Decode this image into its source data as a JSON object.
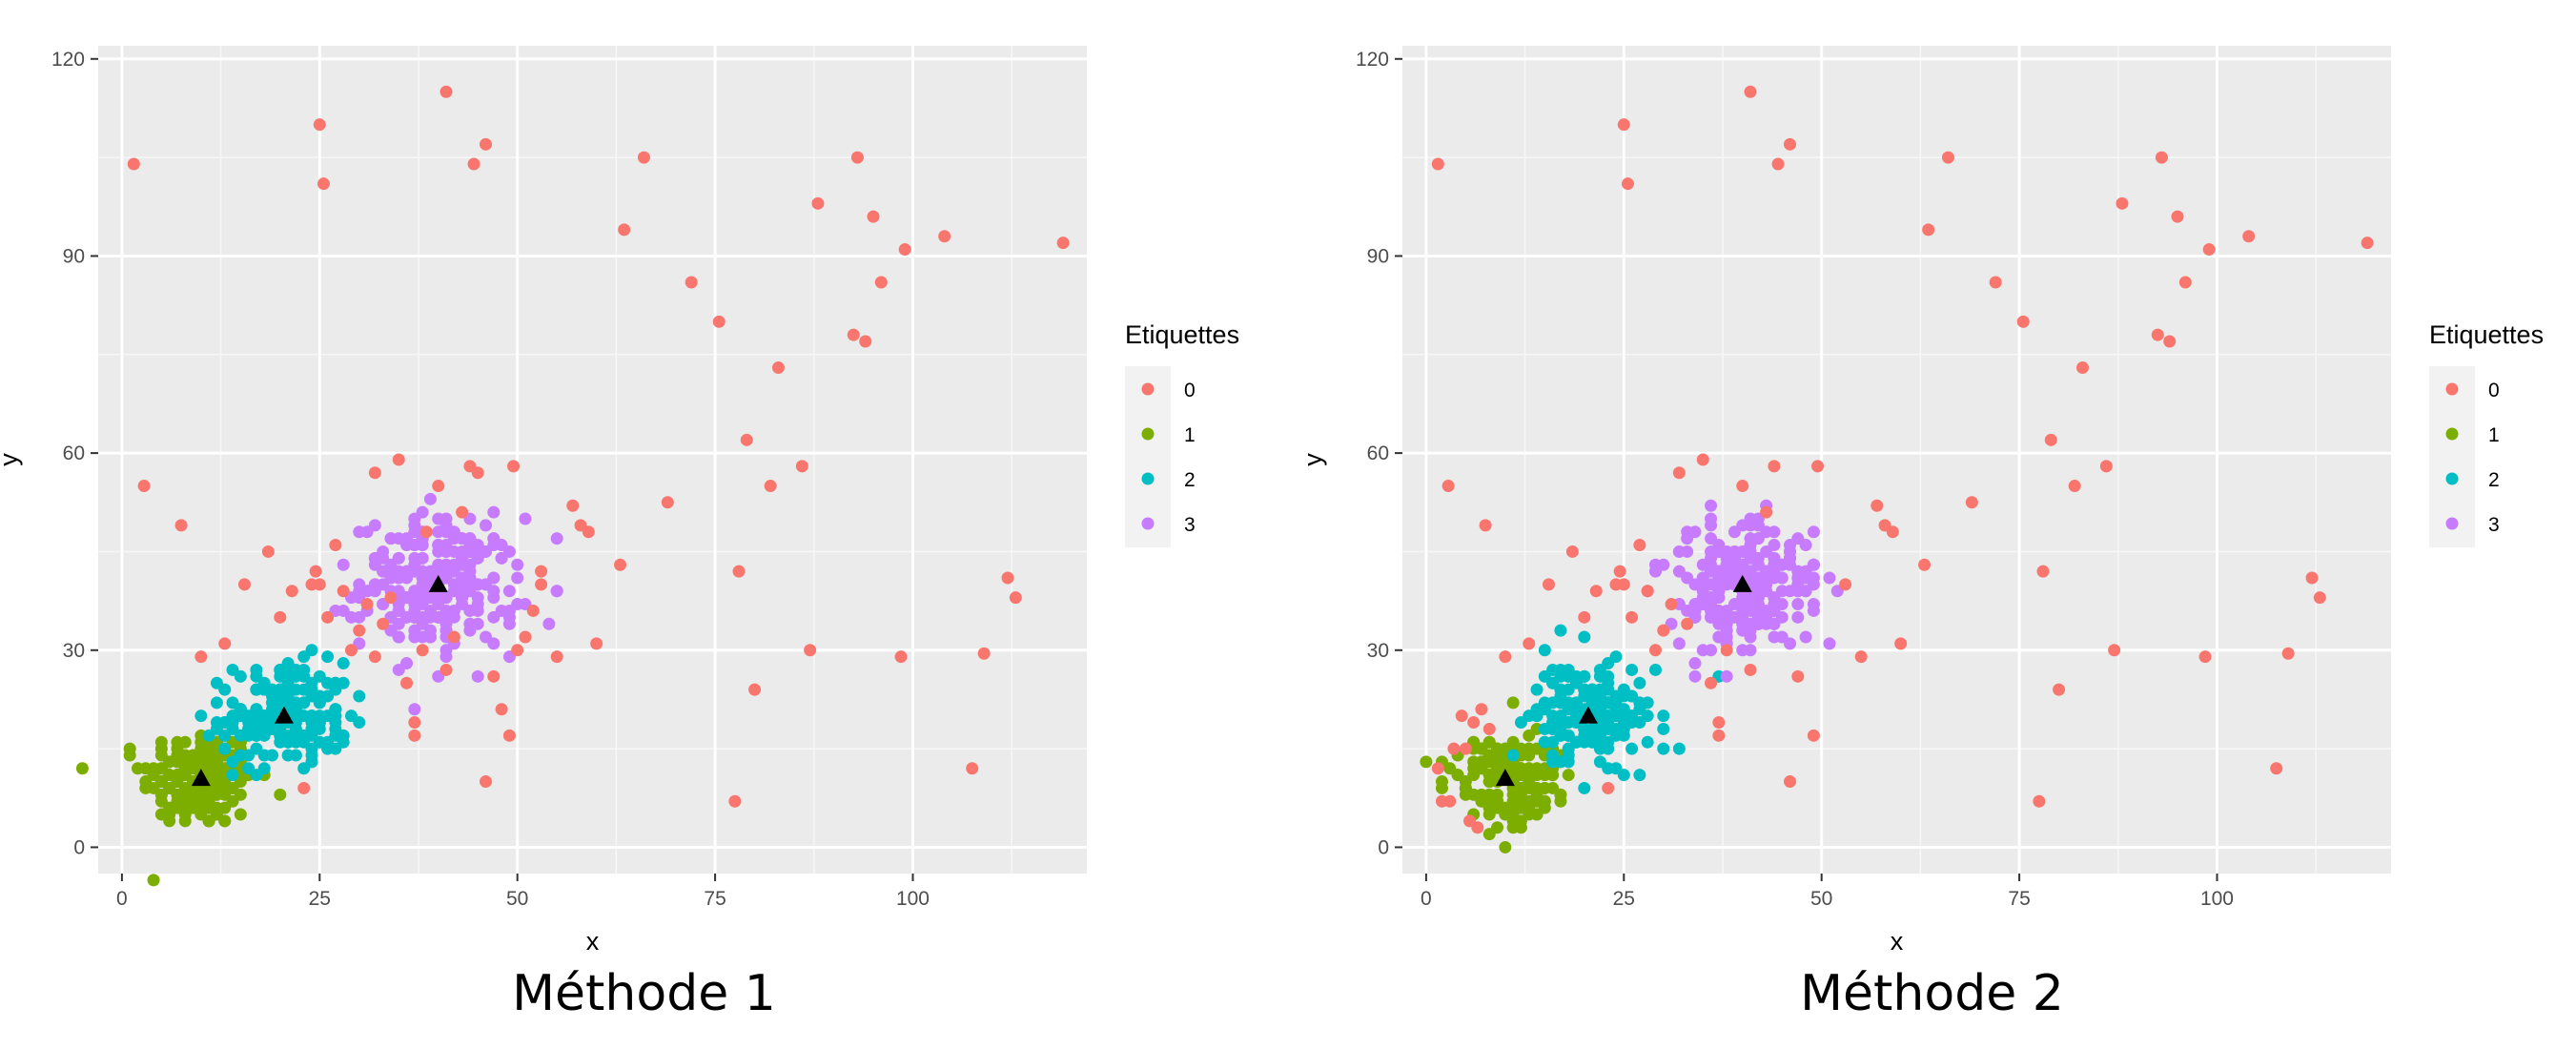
{
  "legend_title": "Etiquettes",
  "label_colors": {
    "0": "#F8766D",
    "1": "#7CAE00",
    "2": "#00BFC4",
    "3": "#C77CFF"
  },
  "chart_data": [
    {
      "type": "scatter",
      "caption": "Méthode 1",
      "xlabel": "x",
      "ylabel": "y",
      "xlim": [
        -3,
        122
      ],
      "ylim": [
        -4,
        122
      ],
      "xticks": [
        0,
        25,
        50,
        75,
        100
      ],
      "yticks": [
        0,
        30,
        60,
        90,
        120
      ],
      "grid": true,
      "legend": {
        "title": "Etiquettes",
        "position": "right",
        "entries": [
          "0",
          "1",
          "2",
          "3"
        ]
      },
      "centroids": [
        [
          10,
          10.5
        ],
        [
          20.5,
          20
        ],
        [
          40,
          40
        ]
      ],
      "clusters": [
        {
          "label": "1",
          "center": [
            10,
            10.5
          ],
          "spread": [
            3.6,
            3.8
          ],
          "n": 190
        },
        {
          "label": "2",
          "center": [
            20.5,
            20
          ],
          "spread": [
            4,
            4
          ],
          "n": 190
        },
        {
          "label": "3",
          "center": [
            40,
            40
          ],
          "spread": [
            5,
            5
          ],
          "n": 270
        }
      ],
      "label0_points": [
        [
          1.5,
          104
        ],
        [
          2.8,
          55
        ],
        [
          7.5,
          49
        ],
        [
          10,
          29
        ],
        [
          13,
          31
        ],
        [
          15.5,
          40
        ],
        [
          18.5,
          45
        ],
        [
          20,
          35
        ],
        [
          21.5,
          39
        ],
        [
          24,
          40
        ],
        [
          25,
          40
        ],
        [
          24.5,
          42
        ],
        [
          26,
          35
        ],
        [
          27,
          46
        ],
        [
          28,
          39
        ],
        [
          29,
          30
        ],
        [
          30,
          33
        ],
        [
          31,
          37
        ],
        [
          32,
          57
        ],
        [
          32,
          29
        ],
        [
          33,
          34
        ],
        [
          34,
          38
        ],
        [
          35,
          59
        ],
        [
          36,
          25
        ],
        [
          37,
          19
        ],
        [
          37,
          17
        ],
        [
          38,
          30
        ],
        [
          38.5,
          48
        ],
        [
          40,
          55
        ],
        [
          41,
          27
        ],
        [
          42,
          32
        ],
        [
          43,
          51
        ],
        [
          44,
          58
        ],
        [
          45,
          57
        ],
        [
          46,
          10
        ],
        [
          47,
          26
        ],
        [
          48,
          21
        ],
        [
          49,
          17
        ],
        [
          49.5,
          58
        ],
        [
          50,
          30
        ],
        [
          51,
          32
        ],
        [
          52,
          36
        ],
        [
          53,
          40
        ],
        [
          53,
          42
        ],
        [
          55,
          29
        ],
        [
          57,
          52
        ],
        [
          58,
          49
        ],
        [
          59,
          48
        ],
        [
          60,
          31
        ],
        [
          63,
          43
        ],
        [
          25,
          110
        ],
        [
          25.5,
          101
        ],
        [
          41,
          115
        ],
        [
          44.5,
          104
        ],
        [
          46,
          107
        ],
        [
          63.5,
          94
        ],
        [
          66,
          105
        ],
        [
          69,
          52.5
        ],
        [
          72,
          86
        ],
        [
          75.5,
          80
        ],
        [
          77.5,
          7
        ],
        [
          78,
          42
        ],
        [
          79,
          62
        ],
        [
          80,
          24
        ],
        [
          82,
          55
        ],
        [
          83,
          73
        ],
        [
          86,
          58
        ],
        [
          87,
          30
        ],
        [
          88,
          98
        ],
        [
          92.5,
          78
        ],
        [
          93,
          105
        ],
        [
          94,
          77
        ],
        [
          95,
          96
        ],
        [
          96,
          86
        ],
        [
          98.5,
          29
        ],
        [
          99,
          91
        ],
        [
          104,
          93
        ],
        [
          107.5,
          12
        ],
        [
          109,
          29.5
        ],
        [
          112,
          41
        ],
        [
          113,
          38
        ],
        [
          119,
          92
        ],
        [
          23,
          9
        ]
      ]
    },
    {
      "type": "scatter",
      "caption": "Méthode 2",
      "xlabel": "x",
      "ylabel": "y",
      "xlim": [
        -3,
        122
      ],
      "ylim": [
        -4,
        122
      ],
      "xticks": [
        0,
        25,
        50,
        75,
        100
      ],
      "yticks": [
        0,
        30,
        60,
        90,
        120
      ],
      "grid": true,
      "legend": {
        "title": "Etiquettes",
        "position": "right",
        "entries": [
          "0",
          "1",
          "2",
          "3"
        ]
      },
      "centroids": [
        [
          10,
          10.5
        ],
        [
          20.5,
          20
        ],
        [
          40,
          40
        ]
      ],
      "clusters": [
        {
          "label": "1",
          "center": [
            10,
            10.5
          ],
          "spread": [
            3.2,
            3.4
          ],
          "n": 170
        },
        {
          "label": "2",
          "center": [
            20.5,
            20
          ],
          "spread": [
            4,
            4
          ],
          "n": 190
        },
        {
          "label": "3",
          "center": [
            40,
            40
          ],
          "spread": [
            5,
            5
          ],
          "n": 260
        }
      ],
      "label0_points": [
        [
          1.5,
          104
        ],
        [
          2.8,
          55
        ],
        [
          7.5,
          49
        ],
        [
          1.5,
          12
        ],
        [
          2,
          7
        ],
        [
          3,
          7
        ],
        [
          3.5,
          15
        ],
        [
          4.5,
          20
        ],
        [
          5,
          15
        ],
        [
          5.5,
          4
        ],
        [
          6,
          19
        ],
        [
          6.5,
          3
        ],
        [
          7,
          21
        ],
        [
          8,
          18
        ],
        [
          10,
          29
        ],
        [
          13,
          31
        ],
        [
          15.5,
          40
        ],
        [
          18.5,
          45
        ],
        [
          20,
          35
        ],
        [
          21.5,
          39
        ],
        [
          24,
          40
        ],
        [
          25,
          40
        ],
        [
          24.5,
          42
        ],
        [
          26,
          35
        ],
        [
          27,
          46
        ],
        [
          28,
          39
        ],
        [
          29,
          30
        ],
        [
          30,
          33
        ],
        [
          31,
          37
        ],
        [
          32,
          57
        ],
        [
          33,
          34
        ],
        [
          35,
          59
        ],
        [
          36,
          25
        ],
        [
          37,
          19
        ],
        [
          37,
          17
        ],
        [
          38,
          30
        ],
        [
          40,
          55
        ],
        [
          41,
          27
        ],
        [
          43,
          51
        ],
        [
          44,
          58
        ],
        [
          46,
          10
        ],
        [
          47,
          26
        ],
        [
          49,
          17
        ],
        [
          49.5,
          58
        ],
        [
          53,
          40
        ],
        [
          55,
          29
        ],
        [
          57,
          52
        ],
        [
          58,
          49
        ],
        [
          59,
          48
        ],
        [
          60,
          31
        ],
        [
          63,
          43
        ],
        [
          25,
          110
        ],
        [
          25.5,
          101
        ],
        [
          41,
          115
        ],
        [
          44.5,
          104
        ],
        [
          46,
          107
        ],
        [
          63.5,
          94
        ],
        [
          66,
          105
        ],
        [
          69,
          52.5
        ],
        [
          72,
          86
        ],
        [
          75.5,
          80
        ],
        [
          77.5,
          7
        ],
        [
          78,
          42
        ],
        [
          79,
          62
        ],
        [
          80,
          24
        ],
        [
          82,
          55
        ],
        [
          83,
          73
        ],
        [
          86,
          58
        ],
        [
          87,
          30
        ],
        [
          88,
          98
        ],
        [
          92.5,
          78
        ],
        [
          93,
          105
        ],
        [
          94,
          77
        ],
        [
          95,
          96
        ],
        [
          96,
          86
        ],
        [
          98.5,
          29
        ],
        [
          99,
          91
        ],
        [
          104,
          93
        ],
        [
          107.5,
          12
        ],
        [
          109,
          29.5
        ],
        [
          112,
          41
        ],
        [
          113,
          38
        ],
        [
          119,
          92
        ],
        [
          23,
          9
        ]
      ]
    }
  ]
}
